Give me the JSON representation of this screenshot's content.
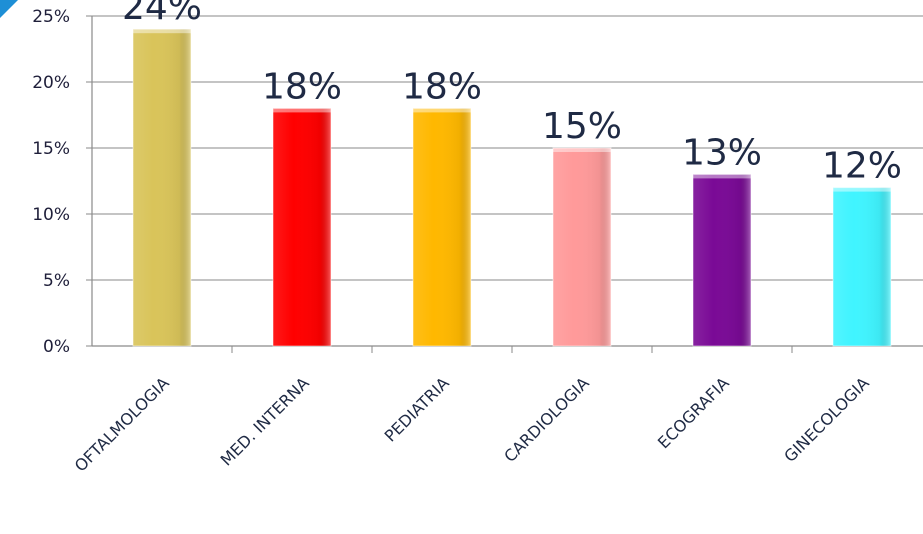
{
  "chart_data": {
    "type": "bar",
    "title": "",
    "xlabel": "",
    "ylabel": "",
    "ylim": [
      0,
      25
    ],
    "yticks": [
      "0%",
      "5%",
      "10%",
      "15%",
      "20%",
      "25%"
    ],
    "categories": [
      "OFTALMOLOGIA",
      "MED. INTERNA",
      "PEDIATRIA",
      "CARDIOLOGIA",
      "ECOGRAFIA",
      "GINECOLOGIA"
    ],
    "values": [
      24,
      18,
      18,
      15,
      13,
      12
    ],
    "data_labels": [
      "24%",
      "18%",
      "18%",
      "15%",
      "13%",
      "12%"
    ],
    "bar_colors": [
      "#d9c45a",
      "#ff0000",
      "#ffb800",
      "#ff9a9a",
      "#7a0a96",
      "#40f4ff"
    ],
    "grid": true,
    "legend": "none"
  }
}
